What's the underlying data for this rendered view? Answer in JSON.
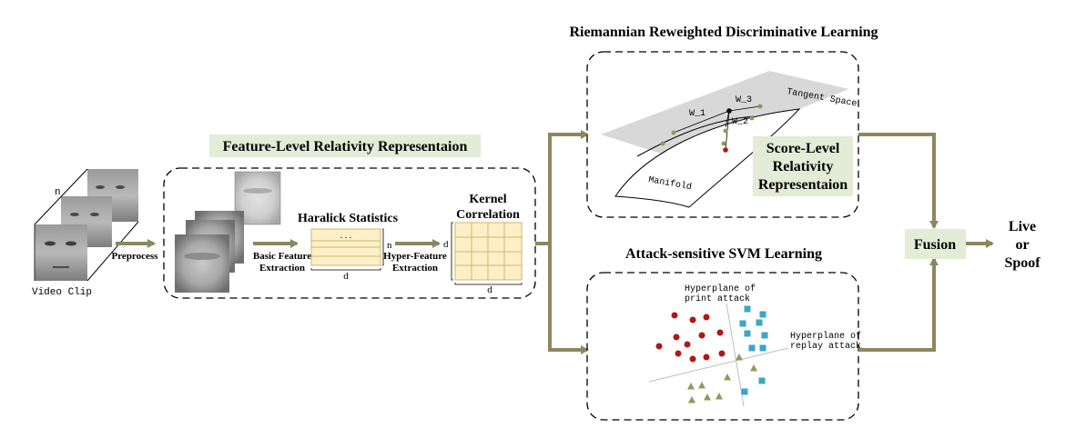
{
  "titles": {
    "riemannian": "Riemannian Reweighted Discriminative Learning",
    "feature_level": "Feature-Level Relativity Representaion",
    "svm": "Attack-sensitive SVM Learning",
    "score_level_1": "Score-Level",
    "score_level_2": "Relativity",
    "score_level_3": "Representaion"
  },
  "input": {
    "n_label": "n",
    "video_clip": "Video Clip",
    "preprocess": "Preprocess"
  },
  "feature_pipeline": {
    "basic_1": "Basic Feature",
    "basic_2": "Extraction",
    "haralick": "Haralick Statistics",
    "dots": ". . .",
    "matrix_n": "n",
    "matrix_d": "d",
    "hyper_1": "Hyper-Feature",
    "hyper_2": "Extraction",
    "kernel_1": "Kernel",
    "kernel_2": "Correlation",
    "kernel_d_left": "d",
    "kernel_d_bottom": "d"
  },
  "manifold": {
    "tangent_space": "Tangent Space",
    "manifold": "Manifold",
    "w1": "W_1",
    "w2": "W_2",
    "w3": "W_3"
  },
  "svm_panel": {
    "print_1": "Hyperplane of",
    "print_2": "print attack",
    "replay_1": "Hyperplane of",
    "replay_2": "replay attack"
  },
  "fusion": "Fusion",
  "output": {
    "live": "Live",
    "or": "or",
    "spoof": "Spoof"
  },
  "colors": {
    "arrow": "#8c8760",
    "highlight": "#e3ecd6",
    "matrix_fill": "#fdf0c8",
    "matrix_line": "#d4b46a",
    "red_dot": "#b01818",
    "blue_square": "#3aa7c4",
    "olive_triangle": "#8f9b5a"
  }
}
